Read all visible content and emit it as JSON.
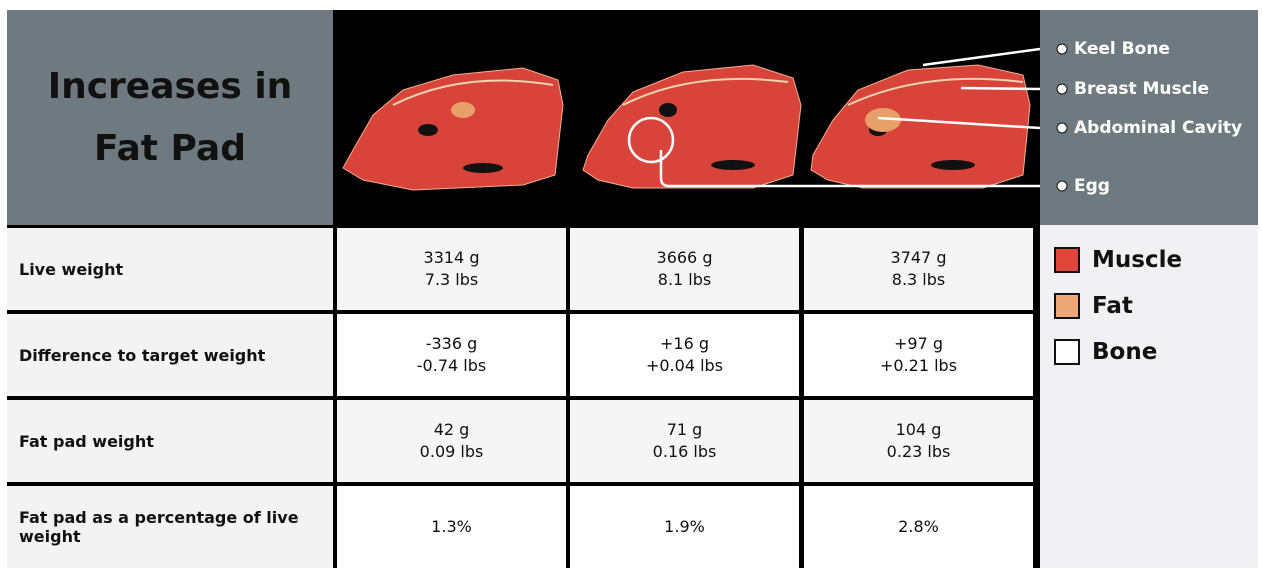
{
  "header": {
    "title_lines": [
      "Increases in",
      "Fat Pad"
    ],
    "callouts": [
      "Keel Bone",
      "Breast Muscle",
      "Abdominal Cavity",
      "Egg"
    ]
  },
  "table": {
    "rows": [
      {
        "label": "Live weight",
        "cells": [
          [
            "3314 g",
            "7.3 lbs"
          ],
          [
            "3666 g",
            "8.1 lbs"
          ],
          [
            "3747 g",
            "8.3 lbs"
          ]
        ]
      },
      {
        "label": "Difference to target weight",
        "cells": [
          [
            "-336 g",
            "-0.74 lbs"
          ],
          [
            "+16 g",
            "+0.04 lbs"
          ],
          [
            "+97 g",
            "+0.21 lbs"
          ]
        ]
      },
      {
        "label": "Fat pad weight",
        "cells": [
          [
            "42 g",
            "0.09 lbs"
          ],
          [
            "71 g",
            "0.16 lbs"
          ],
          [
            "104 g",
            "0.23 lbs"
          ]
        ]
      },
      {
        "label": "Fat pad as a percentage of live weight",
        "cells": [
          [
            "1.3%"
          ],
          [
            "1.9%"
          ],
          [
            "2.8%"
          ]
        ]
      }
    ]
  },
  "legend": [
    {
      "label": "Muscle",
      "color": "#e0463c"
    },
    {
      "label": "Fat",
      "color": "#eda877"
    },
    {
      "label": "Bone",
      "color": "#ffffff"
    }
  ]
}
